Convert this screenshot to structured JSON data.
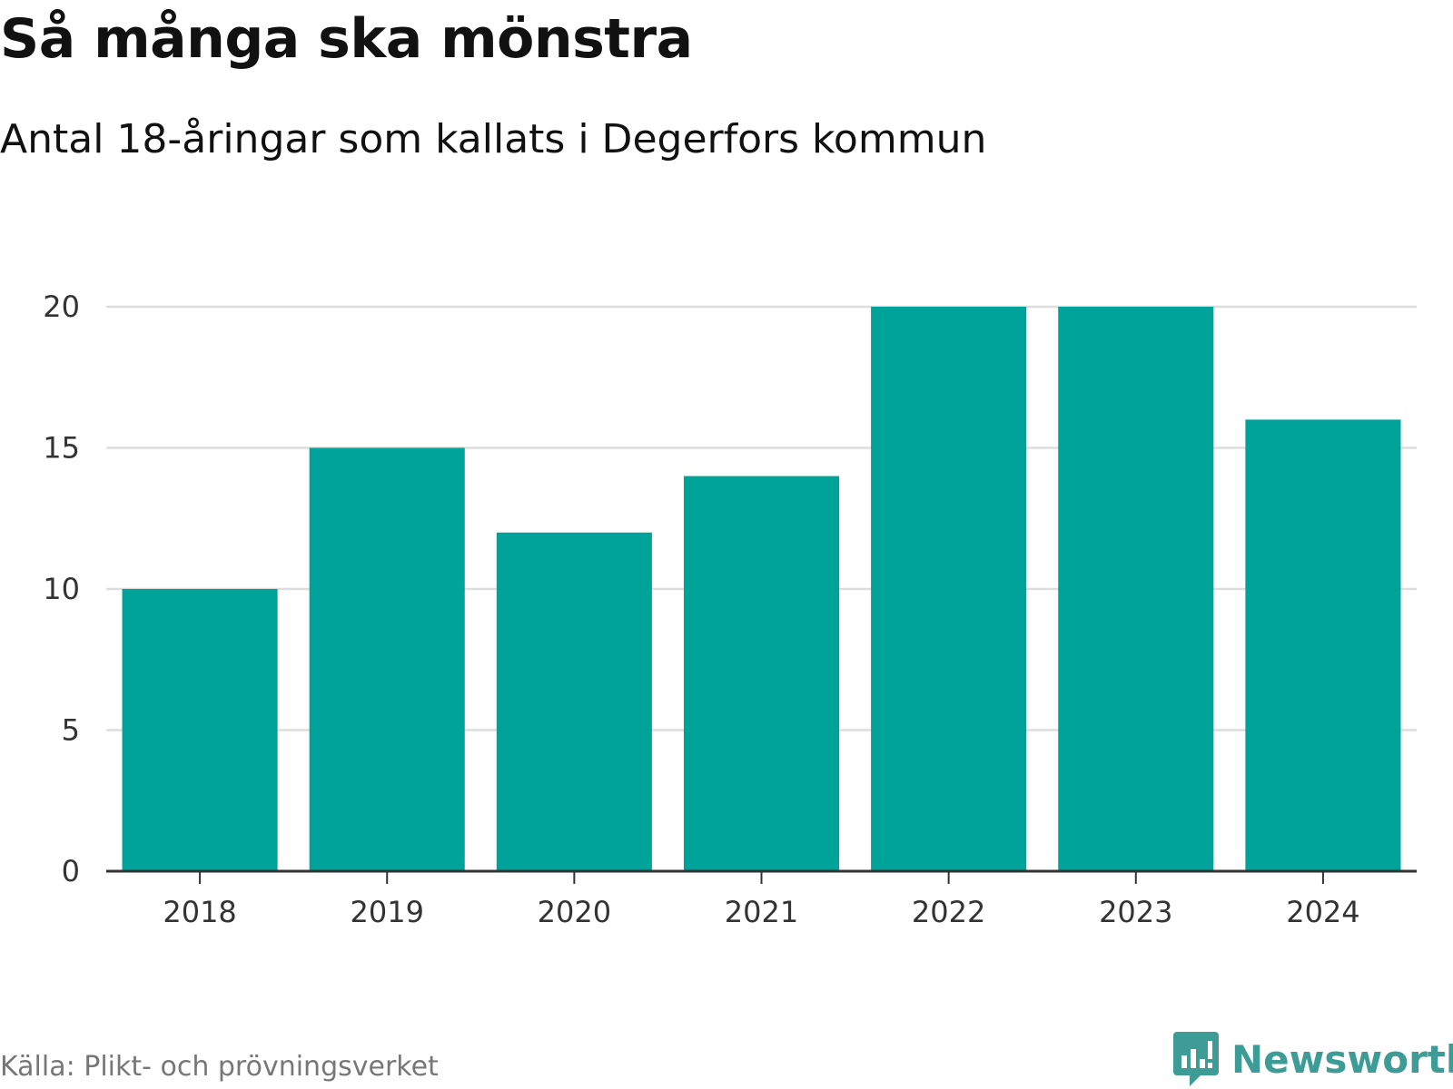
{
  "header": {
    "title": "Så många ska mönstra",
    "subtitle": "Antal 18-åringar som kallats i Degerfors kommun"
  },
  "footer": {
    "source": "Källa: Plikt- och prövningsverket",
    "brand": "Newsworthy",
    "brand_icon": "newsworthy-chat-bars-icon"
  },
  "colors": {
    "bar": "#00A39A",
    "grid": "#DDDDDD",
    "axis": "#333333",
    "brand": "#3D9C95"
  },
  "chart_data": {
    "type": "bar",
    "title": "Så många ska mönstra",
    "subtitle": "Antal 18-åringar som kallats i Degerfors kommun",
    "xlabel": "",
    "ylabel": "",
    "categories": [
      "2018",
      "2019",
      "2020",
      "2021",
      "2022",
      "2023",
      "2024"
    ],
    "values": [
      10,
      15,
      12,
      14,
      20,
      20,
      16
    ],
    "ylim": [
      0,
      20
    ],
    "yticks": [
      0,
      5,
      10,
      15,
      20
    ],
    "grid": true,
    "legend": "none"
  }
}
